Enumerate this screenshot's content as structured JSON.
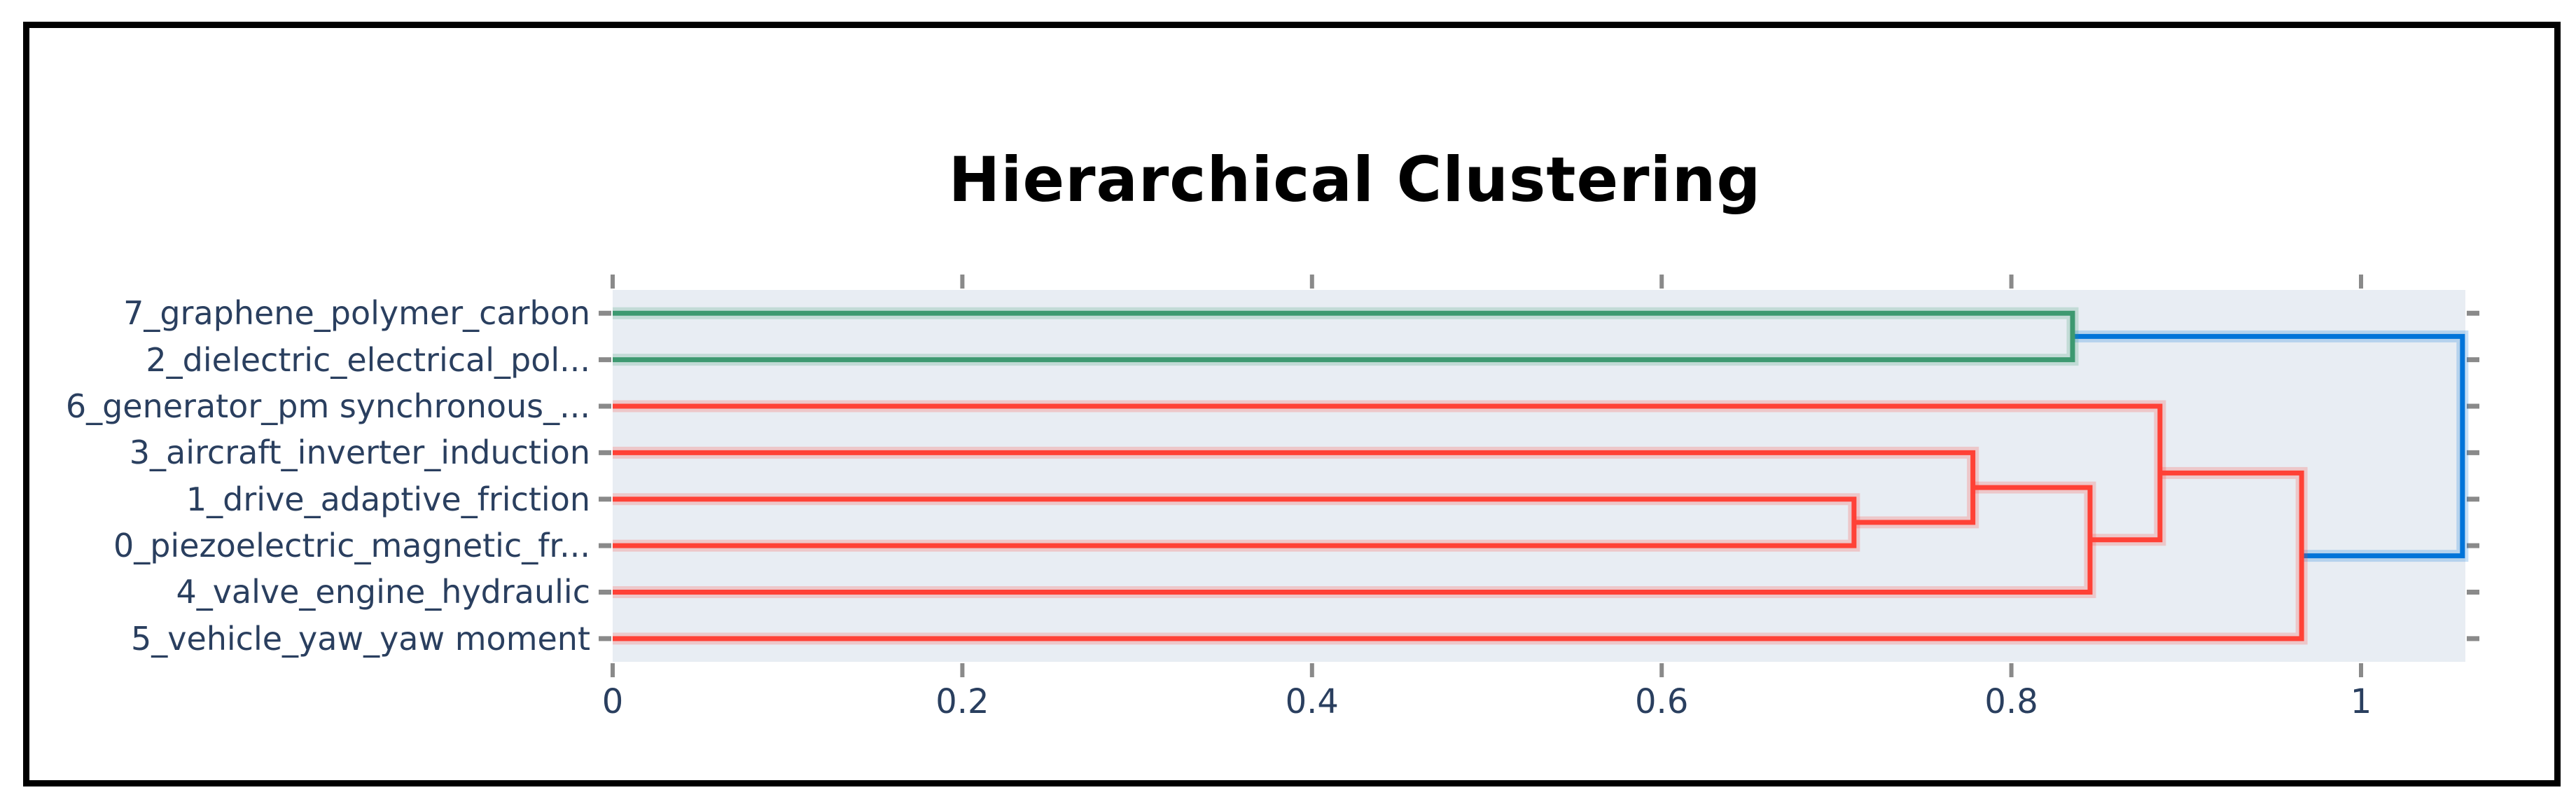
{
  "figure": {
    "frame_color": "#000000",
    "background": "#ffffff"
  },
  "chart_data": {
    "type": "dendrogram",
    "orientation": "horizontal-left-labels",
    "title": "Hierarchical Clustering",
    "plot_background": "#E8EDF3",
    "label_color": "#2A3F5F",
    "tick_color": "#8A8A8A",
    "title_color": "#000000",
    "grid": false,
    "legend": false,
    "leaves": [
      "7_graphene_polymer_carbon",
      "2_dielectric_electrical_pol...",
      "6_generator_pm synchronous_...",
      "3_aircraft_inverter_induction",
      "1_drive_adaptive_friction",
      "0_piezoelectric_magnetic_fr...",
      "4_valve_engine_hydraulic",
      "5_vehicle_yaw_yaw moment"
    ],
    "links": [
      {
        "id": "g",
        "children": [
          "leaf:0",
          "leaf:1"
        ],
        "distance": 0.835,
        "color": "green"
      },
      {
        "id": "c1",
        "children": [
          "leaf:4",
          "leaf:5"
        ],
        "distance": 0.71,
        "color": "red"
      },
      {
        "id": "c2",
        "children": [
          "leaf:3",
          "link:c1"
        ],
        "distance": 0.778,
        "color": "red"
      },
      {
        "id": "c3",
        "children": [
          "link:c2",
          "leaf:6"
        ],
        "distance": 0.845,
        "color": "red"
      },
      {
        "id": "c4",
        "children": [
          "leaf:2",
          "link:c3"
        ],
        "distance": 0.885,
        "color": "red"
      },
      {
        "id": "c5",
        "children": [
          "link:c4",
          "leaf:7"
        ],
        "distance": 0.966,
        "color": "red"
      },
      {
        "id": "root",
        "children": [
          "link:g",
          "link:c5"
        ],
        "distance": 1.058,
        "color": "blue"
      }
    ],
    "colors": {
      "green": "#3D9970",
      "red": "#FF4136",
      "blue": "#0074D9"
    },
    "x_axis": {
      "range": [
        0,
        1.06
      ],
      "ticks": [
        {
          "value": 0,
          "label": "0"
        },
        {
          "value": 0.2,
          "label": "0.2"
        },
        {
          "value": 0.4,
          "label": "0.4"
        },
        {
          "value": 0.6,
          "label": "0.6"
        },
        {
          "value": 0.8,
          "label": "0.8"
        },
        {
          "value": 1,
          "label": "1"
        }
      ],
      "mirror_ticks": true
    },
    "y_axis": {
      "mirror_ticks": true
    }
  }
}
